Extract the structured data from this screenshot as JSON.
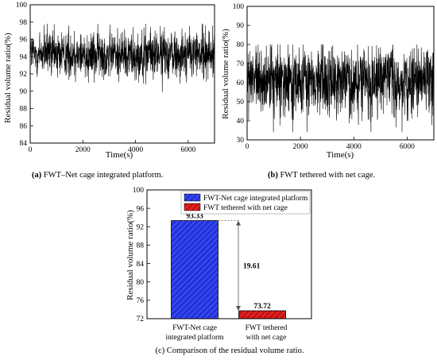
{
  "chart_data": [
    {
      "type": "line",
      "caption_label": "(a)",
      "caption_text": " FWT–Net cage integrated platform.",
      "xlabel": "Time(s)",
      "ylabel": "Residual volume ratio(%)",
      "xlim": [
        0,
        7000
      ],
      "ylim": [
        84,
        100
      ],
      "xticks": [
        "0",
        "2000",
        "4000",
        "6000"
      ],
      "xtick_values": [
        0,
        2000,
        4000,
        6000
      ],
      "yticks": [
        "84",
        "86",
        "88",
        "90",
        "92",
        "94",
        "96",
        "98",
        "100"
      ],
      "ytick_values": [
        84,
        86,
        88,
        90,
        92,
        94,
        96,
        98,
        100
      ],
      "series_color": "#000000",
      "signal": {
        "mean": 94.3,
        "swing": 1.4,
        "min": 89.4,
        "max": 97.8
      }
    },
    {
      "type": "line",
      "caption_label": "(b)",
      "caption_text": " FWT tethered with net cage.",
      "xlabel": "Time(s)",
      "ylabel": "Residual volume ratio(%)",
      "xlim": [
        0,
        7000
      ],
      "ylim": [
        30,
        100
      ],
      "xticks": [
        "0",
        "2000",
        "4000",
        "6000"
      ],
      "xtick_values": [
        0,
        2000,
        4000,
        6000
      ],
      "yticks": [
        "30",
        "40",
        "50",
        "60",
        "70",
        "80",
        "90",
        "100"
      ],
      "ytick_values": [
        30,
        40,
        50,
        60,
        70,
        80,
        90,
        100
      ],
      "series_color": "#000000",
      "signal": {
        "mean": 61,
        "swing": 9,
        "min": 34,
        "max": 80
      }
    },
    {
      "type": "bar",
      "caption": "(c) Comparison of the residual volume ratio.",
      "categories": [
        [
          "FWT-Net cage",
          "integrated platform"
        ],
        [
          "FWT tethered",
          "with net cage"
        ]
      ],
      "legend_entries": [
        "FWT-Net cage integrated platform",
        "FWT tethered with net cage"
      ],
      "values": [
        93.33,
        73.72
      ],
      "value_labels": [
        "93.33",
        "73.72"
      ],
      "difference_label": "19.61",
      "ylabel": "Residual volume ratio(%)",
      "ylim": [
        72,
        100
      ],
      "yticks": [
        "72",
        "76",
        "80",
        "84",
        "88",
        "92",
        "96",
        "100"
      ],
      "ytick_values": [
        72,
        76,
        80,
        84,
        88,
        92,
        96,
        100
      ],
      "colors": [
        "#2233dd",
        "#cc1111"
      ],
      "legend_position": "top-right"
    }
  ]
}
